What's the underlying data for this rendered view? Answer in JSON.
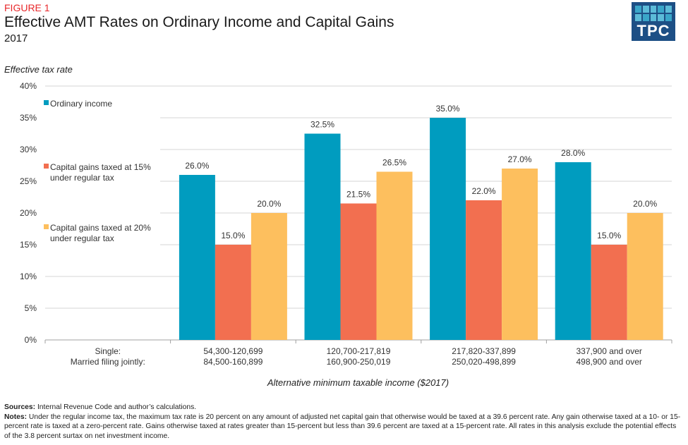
{
  "header": {
    "figure_label": "FIGURE 1",
    "title": "Effective AMT Rates on Ordinary Income and Capital Gains",
    "subtitle": "2017",
    "logo_text": "TPC"
  },
  "chart_data": {
    "type": "bar",
    "title": "Effective AMT Rates on Ordinary Income and Capital Gains",
    "subtitle": "2017",
    "ylabel": "Effective tax rate",
    "xlabel": "Alternative minimum taxable income ($2017)",
    "ylim": [
      0,
      40
    ],
    "yticks": [
      0,
      5,
      10,
      15,
      20,
      25,
      30,
      35,
      40
    ],
    "ytick_labels": [
      "0%",
      "5%",
      "10%",
      "15%",
      "20%",
      "25%",
      "30%",
      "35%",
      "40%"
    ],
    "grid": true,
    "legend_position": "left",
    "row_labels": [
      "Single:",
      "Married filing jointly:"
    ],
    "categories": [
      {
        "single": "54,300-120,699",
        "married": "84,500-160,899"
      },
      {
        "single": "120,700-217,819",
        "married": "160,900-250,019"
      },
      {
        "single": "217,820-337,899",
        "married": "250,020-498,899"
      },
      {
        "single": "337,900 and over",
        "married": "498,900 and over"
      }
    ],
    "series": [
      {
        "name": "Ordinary income",
        "legend_lines": [
          "Ordinary income"
        ],
        "color": "#009cbf",
        "values": [
          26.0,
          32.5,
          35.0,
          28.0
        ],
        "labels": [
          "26.0%",
          "32.5%",
          "35.0%",
          "28.0%"
        ]
      },
      {
        "name": "Capital gains taxed at 15% under regular tax",
        "legend_lines": [
          "Capital gains taxed at 15%",
          "under regular tax"
        ],
        "color": "#f26f50",
        "values": [
          15.0,
          21.5,
          22.0,
          15.0
        ],
        "labels": [
          "15.0%",
          "21.5%",
          "22.0%",
          "15.0%"
        ]
      },
      {
        "name": "Capital gains taxed at 20% under regular tax",
        "legend_lines": [
          "Capital gains taxed at 20%",
          "under regular tax"
        ],
        "color": "#fdbf5e",
        "values": [
          20.0,
          26.5,
          27.0,
          20.0
        ],
        "labels": [
          "20.0%",
          "26.5%",
          "27.0%",
          "20.0%"
        ]
      }
    ]
  },
  "footer": {
    "sources_label": "Sources:",
    "sources_text": " Internal Revenue Code and author’s calculations.",
    "notes_label": "Notes:",
    "notes_text": " Under the regular income tax, the maximum tax rate is 20 percent on any amount of adjusted net capital gain that otherwise would be taxed at a 39.6 percent rate. Any gain otherwise taxed at a 10- or 15-percent rate is taxed at a zero-percent rate. Gains otherwise taxed at rates greater than 15-percent but less than 39.6 percent are taxed at a 15-percent rate. All rates in this analysis exclude the potential effects of the 3.8 percent surtax on net investment income."
  }
}
